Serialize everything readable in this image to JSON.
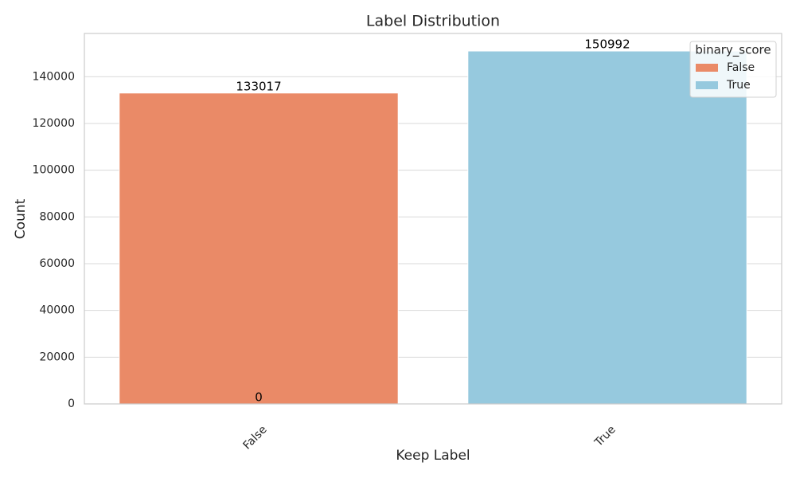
{
  "chart_data": {
    "type": "bar",
    "title": "Label Distribution",
    "x_label": "Keep Label",
    "y_label": "Count",
    "categories": [
      "False",
      "True"
    ],
    "series": [
      {
        "name": "False",
        "color": "#ea8a67",
        "values": [
          133017,
          null
        ]
      },
      {
        "name": "True",
        "color": "#96c9de",
        "values": [
          0,
          150992
        ]
      }
    ],
    "legend_title": "binary_score",
    "legend": "upper right",
    "ylim": [
      0,
      158500
    ],
    "yticks": [
      0,
      20000,
      40000,
      60000,
      80000,
      100000,
      120000,
      140000
    ],
    "grid": true
  }
}
